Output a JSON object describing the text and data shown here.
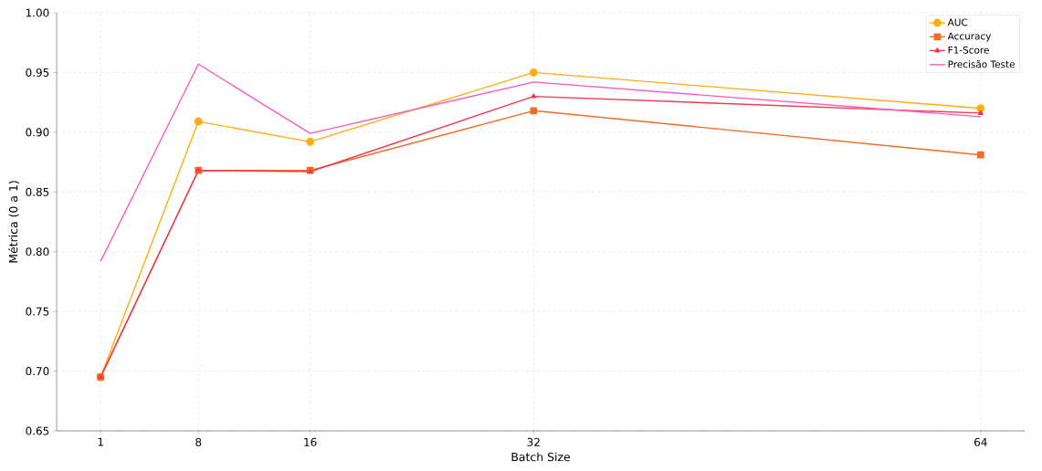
{
  "chart_data": {
    "type": "line",
    "xlabel": "Batch Size",
    "ylabel": "Métrica (0 a 1)",
    "x": [
      1,
      8,
      16,
      32,
      64
    ],
    "xlim": [
      -2.15,
      67.15
    ],
    "ylim": [
      0.65,
      1.0
    ],
    "xticks": [
      1,
      8,
      16,
      32,
      64
    ],
    "yticks": [
      {
        "value": 0.65,
        "label": "0.65"
      },
      {
        "value": 0.7,
        "label": "0.70"
      },
      {
        "value": 0.75,
        "label": "0.75"
      },
      {
        "value": 0.8,
        "label": "0.80"
      },
      {
        "value": 0.85,
        "label": "0.85"
      },
      {
        "value": 0.9,
        "label": "0.90"
      },
      {
        "value": 0.95,
        "label": "0.95"
      },
      {
        "value": 1.0,
        "label": "1.00"
      }
    ],
    "grid": true,
    "legend": "top right",
    "line_style": "solid",
    "series": [
      {
        "name": "AUC",
        "color": "#ffae12",
        "marker": "circle",
        "values": [
          0.695,
          0.909,
          0.892,
          0.95,
          0.92
        ]
      },
      {
        "name": "Accuracy",
        "color": "#f26b2a",
        "marker": "square",
        "values": [
          0.695,
          0.868,
          0.868,
          0.918,
          0.881
        ]
      },
      {
        "name": "F1-Score",
        "color": "#f0384f",
        "marker": "triangle",
        "values": [
          0.695,
          0.868,
          0.867,
          0.93,
          0.916
        ]
      },
      {
        "name": "Precisão Teste",
        "color": "#f95bbf",
        "marker": "none",
        "values": [
          0.792,
          0.957,
          0.899,
          0.942,
          0.913
        ]
      }
    ]
  }
}
